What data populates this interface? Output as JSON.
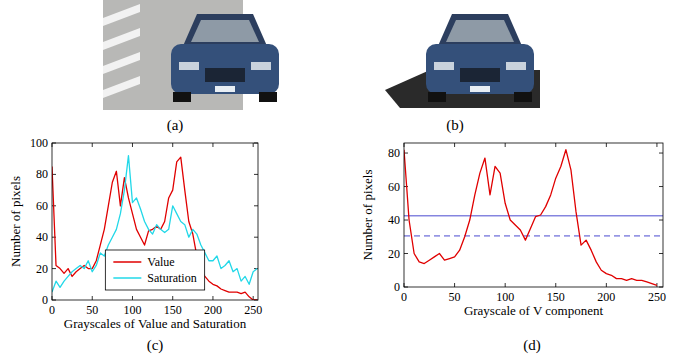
{
  "figure": {
    "captions": [
      "(a)",
      "(b)",
      "(c)",
      "(d)"
    ]
  },
  "chart_data": [
    {
      "type": "line",
      "x_label": "Grayscales of Value and Saturation",
      "y_label": "Number of pixels",
      "x": [
        0,
        5,
        10,
        15,
        20,
        25,
        30,
        35,
        40,
        45,
        50,
        55,
        60,
        65,
        70,
        75,
        80,
        85,
        90,
        95,
        100,
        105,
        110,
        115,
        120,
        125,
        130,
        135,
        140,
        145,
        150,
        155,
        160,
        165,
        170,
        175,
        180,
        185,
        190,
        195,
        200,
        205,
        210,
        215,
        220,
        225,
        230,
        235,
        240,
        245,
        250,
        255
      ],
      "series": [
        {
          "name": "Value",
          "color": "#e00000",
          "values": [
            85,
            22,
            20,
            17,
            20,
            15,
            18,
            20,
            22,
            20,
            20,
            25,
            35,
            45,
            60,
            75,
            82,
            60,
            78,
            65,
            55,
            45,
            40,
            35,
            44,
            45,
            47,
            45,
            50,
            65,
            70,
            88,
            91,
            70,
            50,
            42,
            28,
            20,
            15,
            12,
            10,
            9,
            7,
            6,
            5,
            5,
            5,
            4,
            5,
            2,
            0,
            0
          ]
        },
        {
          "name": "Saturation",
          "color": "#22d8e8",
          "values": [
            5,
            12,
            8,
            12,
            15,
            18,
            20,
            22,
            20,
            25,
            18,
            22,
            30,
            28,
            35,
            40,
            45,
            55,
            70,
            92,
            62,
            65,
            58,
            50,
            45,
            42,
            48,
            45,
            43,
            45,
            60,
            55,
            50,
            48,
            40,
            45,
            42,
            35,
            30,
            25,
            25,
            28,
            20,
            22,
            25,
            18,
            20,
            12,
            15,
            10,
            18,
            20
          ]
        }
      ],
      "xlim": [
        0,
        256
      ],
      "xticks": [
        0,
        50,
        100,
        150,
        200,
        250
      ],
      "ylim": [
        0,
        100
      ],
      "yticks": [
        0,
        20,
        40,
        60,
        80,
        100
      ],
      "legend": "lower center"
    },
    {
      "type": "line",
      "x_label": "Grayscale of V component",
      "y_label": "Number of pixels",
      "x": [
        0,
        5,
        10,
        15,
        20,
        25,
        30,
        35,
        40,
        45,
        50,
        55,
        60,
        65,
        70,
        75,
        80,
        85,
        90,
        95,
        100,
        105,
        110,
        115,
        120,
        125,
        130,
        135,
        140,
        145,
        150,
        155,
        160,
        165,
        170,
        175,
        180,
        185,
        190,
        195,
        200,
        205,
        210,
        215,
        220,
        225,
        230,
        235,
        240,
        245,
        250
      ],
      "series": [
        {
          "color": "#e00000",
          "values": [
            82,
            40,
            20,
            15,
            14,
            16,
            18,
            20,
            16,
            17,
            18,
            22,
            30,
            40,
            55,
            68,
            77,
            55,
            72,
            68,
            50,
            40,
            37,
            34,
            28,
            35,
            42,
            43,
            48,
            55,
            65,
            72,
            82,
            70,
            45,
            25,
            28,
            22,
            15,
            10,
            8,
            7,
            5,
            5,
            4,
            5,
            4,
            4,
            3,
            2,
            1
          ]
        }
      ],
      "hlines": [
        {
          "value": 42.5,
          "color": "#4a4ad0",
          "line_style": "solid"
        },
        {
          "value": 30.5,
          "color": "#4a4ad0",
          "line_style": "dashed"
        }
      ],
      "xlim": [
        0,
        256
      ],
      "xticks": [
        0,
        50,
        100,
        150,
        200,
        250
      ],
      "ylim": [
        0,
        86
      ],
      "yticks": [
        0,
        20,
        40,
        60,
        80
      ]
    }
  ]
}
